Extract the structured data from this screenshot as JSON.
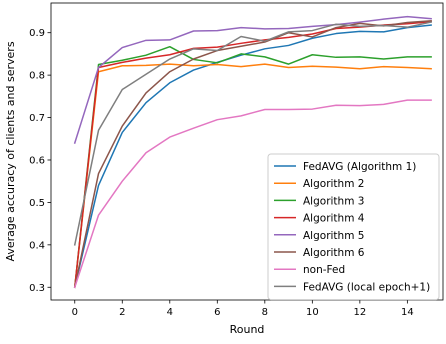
{
  "chart_data": {
    "type": "line",
    "title": "",
    "xlabel": "Round",
    "ylabel": "Average accuracy of clients and servers",
    "xlim": [
      -1,
      15.5
    ],
    "ylim": [
      0.27,
      0.97
    ],
    "x_ticks": [
      0,
      2,
      4,
      6,
      8,
      10,
      12,
      14
    ],
    "y_ticks": [
      0.3,
      0.4,
      0.5,
      0.6,
      0.7,
      0.8,
      0.9
    ],
    "grid": false,
    "legend_position": "lower-right",
    "x": [
      0,
      1,
      2,
      3,
      4,
      5,
      6,
      7,
      8,
      9,
      10,
      11,
      12,
      13,
      14,
      15
    ],
    "series": [
      {
        "name": "FedAVG (Algorithm 1)",
        "color": "#1f77b4",
        "values": [
          0.3,
          0.54,
          0.665,
          0.735,
          0.782,
          0.812,
          0.83,
          0.847,
          0.862,
          0.87,
          0.887,
          0.898,
          0.903,
          0.902,
          0.912,
          0.918
        ]
      },
      {
        "name": "Algorithm 2",
        "color": "#ff7f0e",
        "values": [
          0.3,
          0.808,
          0.822,
          0.823,
          0.826,
          0.822,
          0.825,
          0.82,
          0.826,
          0.818,
          0.821,
          0.819,
          0.815,
          0.82,
          0.818,
          0.815
        ]
      },
      {
        "name": "Algorithm 3",
        "color": "#2ca02c",
        "values": [
          0.3,
          0.825,
          0.835,
          0.847,
          0.867,
          0.837,
          0.829,
          0.85,
          0.843,
          0.826,
          0.848,
          0.842,
          0.843,
          0.838,
          0.843,
          0.843
        ]
      },
      {
        "name": "Algorithm 4",
        "color": "#d62728",
        "values": [
          0.3,
          0.818,
          0.83,
          0.84,
          0.848,
          0.863,
          0.866,
          0.875,
          0.883,
          0.889,
          0.897,
          0.91,
          0.913,
          0.918,
          0.921,
          0.926
        ]
      },
      {
        "name": "Algorithm 5",
        "color": "#9467bd",
        "values": [
          0.64,
          0.818,
          0.865,
          0.882,
          0.883,
          0.904,
          0.905,
          0.912,
          0.909,
          0.91,
          0.915,
          0.919,
          0.925,
          0.932,
          0.938,
          0.933
        ]
      },
      {
        "name": "Algorithm 6",
        "color": "#8c564b",
        "values": [
          0.3,
          0.568,
          0.68,
          0.758,
          0.808,
          0.838,
          0.858,
          0.868,
          0.878,
          0.9,
          0.89,
          0.912,
          0.922,
          0.916,
          0.924,
          0.928
        ]
      },
      {
        "name": "non-Fed",
        "color": "#e377c2",
        "values": [
          0.3,
          0.47,
          0.55,
          0.617,
          0.654,
          0.675,
          0.695,
          0.704,
          0.719,
          0.719,
          0.72,
          0.729,
          0.728,
          0.731,
          0.741,
          0.741
        ]
      },
      {
        "name": "FedAVG (local epoch+1)",
        "color": "#7f7f7f",
        "values": [
          0.4,
          0.67,
          0.766,
          0.802,
          0.838,
          0.862,
          0.858,
          0.891,
          0.88,
          0.902,
          0.905,
          0.92,
          0.915,
          0.917,
          0.913,
          0.925
        ]
      }
    ]
  }
}
